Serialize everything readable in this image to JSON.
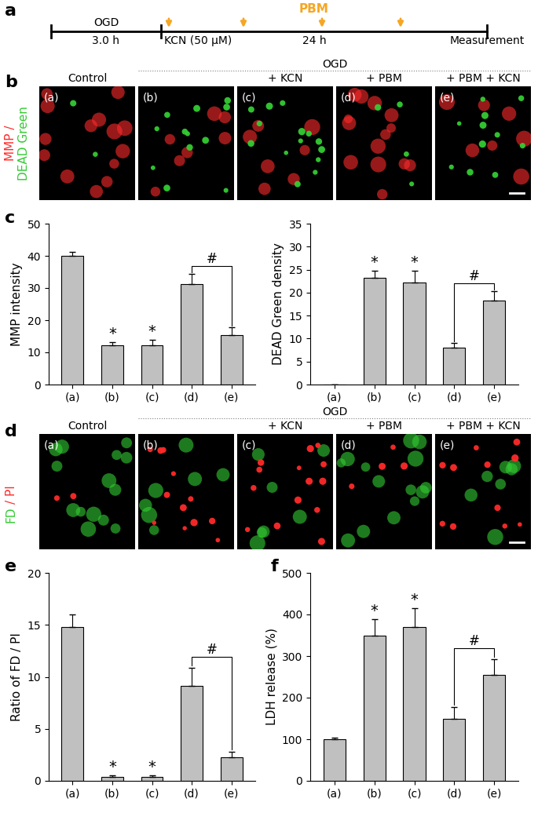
{
  "panel_labels": [
    "a",
    "b",
    "c",
    "d",
    "e",
    "f"
  ],
  "timeline": {
    "phase1_label": "OGD",
    "phase1_duration": "3.0 h",
    "treatment": "KCN (50 μM)",
    "phase2_duration": "24 h",
    "end_label": "Measurement",
    "irradiation_label": "PBM",
    "irradiation_color": "#f5a623"
  },
  "image_rows": [
    {
      "panel": "b",
      "channel_lines": [
        [
          {
            "text": "MMP /",
            "color": "#ff2a2a"
          }
        ],
        [
          {
            "text": "DEAD Green",
            "color": "#33cc33"
          }
        ]
      ],
      "group_label": "OGD",
      "group_columns": [
        "(b)",
        "(c)",
        "(d)",
        "(e)"
      ],
      "columns": [
        {
          "letter": "(a)",
          "title": "Control"
        },
        {
          "letter": "(b)"
        },
        {
          "letter": "(c)",
          "title": "+ KCN"
        },
        {
          "letter": "(d)",
          "title": "+ PBM"
        },
        {
          "letter": "(e)",
          "title": "+ PBM + KCN"
        }
      ]
    },
    {
      "panel": "d",
      "channel_lines": [
        [
          {
            "text": "FD",
            "color": "#33cc33"
          },
          {
            "text": "/ PI",
            "color": "#ff2a2a"
          }
        ]
      ],
      "group_label": "OGD",
      "group_columns": [
        "(b)",
        "(c)",
        "(d)",
        "(e)"
      ],
      "columns": [
        {
          "letter": "(a)",
          "title": "Control"
        },
        {
          "letter": "(b)"
        },
        {
          "letter": "(c)",
          "title": "+ KCN"
        },
        {
          "letter": "(d)",
          "title": "+ PBM"
        },
        {
          "letter": "(e)",
          "title": "+ PBM + KCN"
        }
      ]
    }
  ],
  "chart_data": [
    {
      "type": "bar",
      "panel": "c",
      "y_label": "MMP intensity",
      "categories": [
        "(a)",
        "(b)",
        "(c)",
        "(d)",
        "(e)"
      ],
      "values": [
        40,
        12.2,
        12.2,
        31.3,
        15.3
      ],
      "errors": [
        1.2,
        1.0,
        1.8,
        3.0,
        2.5
      ],
      "color": "#c0c0c0",
      "ylim": [
        0,
        50
      ],
      "yticks": [
        0,
        10,
        20,
        30,
        40,
        50
      ],
      "star_label": "*",
      "star_categories": [
        "(b)",
        "(c)"
      ],
      "bracket_label": "#",
      "bracket_categories": [
        "(d)",
        "(e)"
      ]
    },
    {
      "type": "bar",
      "panel": "c",
      "y_label": "DEAD Green density",
      "categories": [
        "(a)",
        "(b)",
        "(c)",
        "(d)",
        "(e)"
      ],
      "values": [
        0,
        23.2,
        22.2,
        8.0,
        18.3
      ],
      "errors": [
        0,
        1.5,
        2.5,
        1.0,
        2.0
      ],
      "color": "#c0c0c0",
      "ylim": [
        0,
        35
      ],
      "yticks": [
        0,
        5,
        10,
        15,
        20,
        25,
        30,
        35
      ],
      "star_label": "*",
      "star_categories": [
        "(b)",
        "(c)"
      ],
      "bracket_label": "#",
      "bracket_categories": [
        "(d)",
        "(e)"
      ]
    },
    {
      "type": "bar",
      "panel": "e",
      "y_label": "Ratio of FD / PI",
      "categories": [
        "(a)",
        "(b)",
        "(c)",
        "(d)",
        "(e)"
      ],
      "values": [
        14.8,
        0.4,
        0.4,
        9.1,
        2.3
      ],
      "errors": [
        1.2,
        0.1,
        0.1,
        1.8,
        0.5
      ],
      "color": "#c0c0c0",
      "ylim": [
        0,
        20
      ],
      "yticks": [
        0,
        5,
        10,
        15,
        20
      ],
      "star_label": "*",
      "star_categories": [
        "(b)",
        "(c)"
      ],
      "bracket_label": "#",
      "bracket_categories": [
        "(d)",
        "(e)"
      ]
    },
    {
      "type": "bar",
      "panel": "f",
      "y_label": "LDH release (%)",
      "categories": [
        "(a)",
        "(b)",
        "(c)",
        "(d)",
        "(e)"
      ],
      "values": [
        100,
        350,
        370,
        150,
        255
      ],
      "errors": [
        4,
        38,
        45,
        28,
        38
      ],
      "color": "#c0c0c0",
      "ylim": [
        0,
        500
      ],
      "yticks": [
        0,
        100,
        200,
        300,
        400,
        500
      ],
      "star_label": "*",
      "star_categories": [
        "(b)",
        "(c)"
      ],
      "bracket_label": "#",
      "bracket_categories": [
        "(d)",
        "(e)"
      ]
    }
  ]
}
